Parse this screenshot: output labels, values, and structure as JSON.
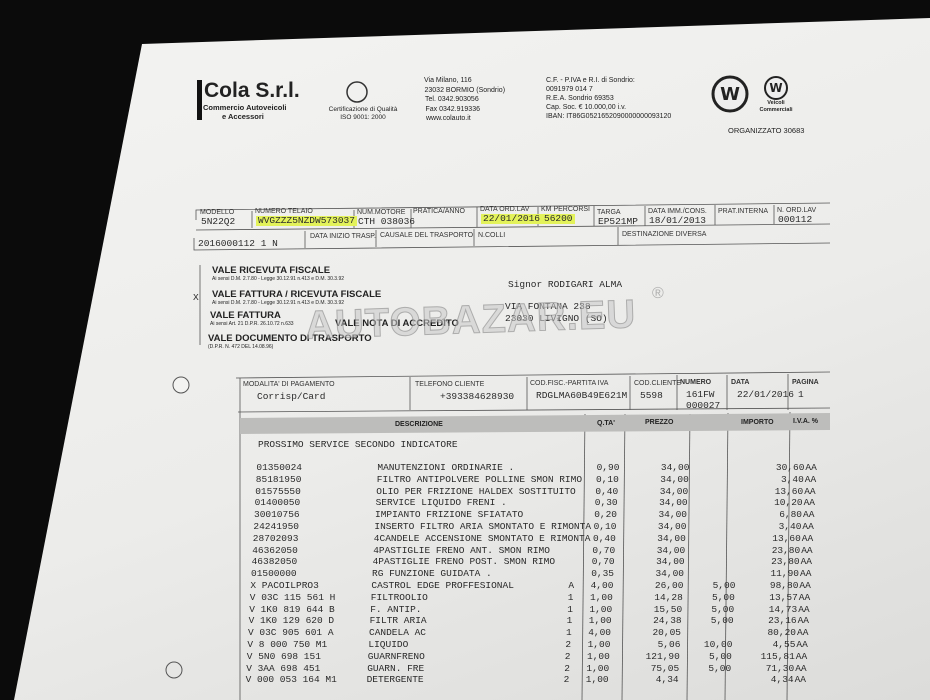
{
  "header": {
    "company": "Cola S.r.l.",
    "tagline": [
      "Commercio Autoveicoli",
      "e Accessori"
    ],
    "cert": [
      "Certificazione di Qualità",
      "ISO 9001: 2000"
    ],
    "address": [
      "Via Milano, 116",
      "23032 BORMIO (Sondrio)",
      "Tel. 0342.903056",
      "Fax 0342.919336",
      "www.colauto.it"
    ],
    "tax": [
      "C.F. - P.IVA e R.I. di Sondrio:",
      "0091979 014 7",
      "R.E.A. Sondrio 69353",
      "Cap. Soc. € 10.000,00 i.v.",
      "IBAN: IT86G0521652090000000093120"
    ],
    "brand": [
      "Veicoli",
      "Commerciali"
    ],
    "organizzato": "ORGANIZZATO 30683"
  },
  "vehicle": [
    {
      "label": "MODELLO",
      "value": "5N22Q2"
    },
    {
      "label": "NUMERO TELAIO",
      "value": "WVGZZZ5NZDW573037"
    },
    {
      "label": "NUM.MOTORE",
      "value": "CTH 038036"
    },
    {
      "label": "PRATICA/ANNO"
    },
    {
      "label": "DATA ORD.LAV",
      "value": "22/01/2016"
    },
    {
      "label": "KM PERCORSI",
      "value": "56200"
    },
    {
      "label": "TARGA",
      "value": "EP521MP"
    },
    {
      "label": "DATA IMM./CONS.",
      "value": "18/01/2013"
    },
    {
      "label": "PRAT.INTERNA"
    },
    {
      "label": "N. ORD.LAV",
      "value": "000112"
    }
  ],
  "transport": {
    "reference": "2016000112 1 N",
    "labels": [
      "DATA INIZIO TRASP.",
      "CAUSALE DEL TRASPORTO",
      "N.COLLI",
      "DESTINAZIONE DIVERSA"
    ]
  },
  "document_types": [
    {
      "title": "VALE RICEVUTA FISCALE",
      "note": "Ai sensi D.M. 2.7.80 - Legge 30.12.91 n.413 e D.M. 30.3.92"
    },
    {
      "mark": "X",
      "title": "VALE FATTURA / RICEVUTA FISCALE",
      "note": "Ai sensi D.M. 2.7.80 - Legge 30.12.91 n.413 e D.M. 30.3.92"
    },
    {
      "title": "VALE FATTURA",
      "note": "Ai sensi Art. 21 D.P.R. 26.10.72 n.633"
    },
    {
      "title": "VALE NOTA DI ACCREDITO"
    },
    {
      "title": "VALE DOCUMENTO DI TRASPORTO",
      "note": "(D.P.R. N. 472 DEL 14.08.96)"
    }
  ],
  "customer": [
    "Signor RODIGARI ALMA",
    "VIA FONTANA 238",
    "23030 LIVIGNO (SO)"
  ],
  "watermark": "AUTOBAZAR.EU",
  "watermark_mark": "®",
  "payment": [
    {
      "label": "MODALITA' DI PAGAMENTO",
      "value": [
        "Corrisp/Card"
      ]
    },
    {
      "label": "TELEFONO CLIENTE",
      "value": [
        "+393384628930"
      ]
    },
    {
      "label": "COD.FISC.-PARTITA IVA",
      "value": [
        "RDGLMA60B49E621M"
      ]
    },
    {
      "label": "COD.CLIENTE",
      "value": [
        "5598"
      ]
    },
    {
      "label": "NUMERO",
      "value": [
        "161FW",
        "000027"
      ]
    },
    {
      "label": "DATA",
      "value": [
        "22/01/2016"
      ]
    },
    {
      "label": "PAGINA",
      "value": [
        "1"
      ]
    }
  ],
  "table": {
    "headers": [
      "DESCRIZIONE",
      "Q.TA'",
      "PREZZO",
      "IMPORTO",
      "I.V.A. %"
    ],
    "rows": [
      {
        "description": "PROSSIMO SERVICE SECONDO INDICATORE"
      },
      {
        "code": "01350024",
        "description": "MANUTENZIONI ORDINARIE .",
        "qty": "0,90",
        "price": "34,00",
        "amount": "30,60",
        "vat": "AA"
      },
      {
        "code": "85181950",
        "description": "FILTRO ANTIPOLVERE POLLINE SMON RIMO",
        "qty": "0,10",
        "price": "34,00",
        "amount": "3,40",
        "vat": "AA"
      },
      {
        "code": "01575550",
        "description": "OLIO PER FRIZIONE HALDEX SOSTITUITO",
        "qty": "0,40",
        "price": "34,00",
        "amount": "13,60",
        "vat": "AA"
      },
      {
        "code": "01400050",
        "description": "SERVICE LIQUIDO FRENI .",
        "qty": "0,30",
        "price": "34,00",
        "amount": "10,20",
        "vat": "AA"
      },
      {
        "code": "30010756",
        "description": "IMPIANTO FRIZIONE SFIATATO",
        "qty": "0,20",
        "price": "34,00",
        "amount": "6,80",
        "vat": "AA"
      },
      {
        "code": "24241950",
        "description": "INSERTO FILTRO ARIA SMONTATO E RIMONTA",
        "qty": "0,10",
        "price": "34,00",
        "amount": "3,40",
        "vat": "AA"
      },
      {
        "code": "28702093",
        "description": "4CANDELE ACCENSIONE SMONTATO E RIMONTA",
        "qty": "0,40",
        "price": "34,00",
        "amount": "13,60",
        "vat": "AA"
      },
      {
        "code": "46362050",
        "description": "4PASTIGLIE FRENO ANT. SMON RIMO",
        "qty": "0,70",
        "price": "34,00",
        "amount": "23,80",
        "vat": "AA"
      },
      {
        "code": "46382050",
        "description": "4PASTIGLIE FRENO POST. SMON RIMO",
        "qty": "0,70",
        "price": "34,00",
        "amount": "23,80",
        "vat": "AA"
      },
      {
        "code": "01500000",
        "description": "RG FUNZIONE GUIDATA .",
        "qty": "0,35",
        "price": "34,00",
        "amount": "11,90",
        "vat": "AA"
      },
      {
        "code": "X PACOILPRO3",
        "description": "CASTROL EDGE PROFFESIONAL",
        "flag": "A",
        "qty": "4,00",
        "price": "26,00",
        "discount": "5,00",
        "amount": "98,80",
        "vat": "AA"
      },
      {
        "code": "V 03C 115 561 H",
        "description": "FILTROOLIO",
        "flag": "1",
        "qty": "1,00",
        "price": "14,28",
        "discount": "5,00",
        "amount": "13,57",
        "vat": "AA"
      },
      {
        "code": "V 1K0 819 644 B",
        "description": "F. ANTIP.",
        "flag": "1",
        "qty": "1,00",
        "price": "15,50",
        "discount": "5,00",
        "amount": "14,73",
        "vat": "AA"
      },
      {
        "code": "V 1K0 129 620 D",
        "description": "FILTR ARIA",
        "flag": "1",
        "qty": "1,00",
        "price": "24,38",
        "discount": "5,00",
        "amount": "23,16",
        "vat": "AA"
      },
      {
        "code": "V 03C 905 601 A",
        "description": "CANDELA AC",
        "flag": "1",
        "qty": "4,00",
        "price": "20,05",
        "amount": "80,20",
        "vat": "AA"
      },
      {
        "code": "V 8   000 750 M1",
        "description": "LIQUIDO",
        "flag": "2",
        "qty": "1,00",
        "price": "5,06",
        "discount": "10,00",
        "amount": "4,55",
        "vat": "AA"
      },
      {
        "code": "V 5N0 698 151",
        "description": "GUARNFRENO",
        "flag": "2",
        "qty": "1,00",
        "price": "121,90",
        "discount": "5,00",
        "amount": "115,81",
        "vat": "AA"
      },
      {
        "code": "V 3AA 698 451",
        "description": "GUARN. FRE",
        "flag": "2",
        "qty": "1,00",
        "price": "75,05",
        "discount": "5,00",
        "amount": "71,30",
        "vat": "AA"
      },
      {
        "code": "V 000 053 164 M1",
        "description": "DETERGENTE",
        "flag": "2",
        "qty": "1,00",
        "price": "4,34",
        "amount": "4,34",
        "vat": "AA"
      }
    ]
  }
}
